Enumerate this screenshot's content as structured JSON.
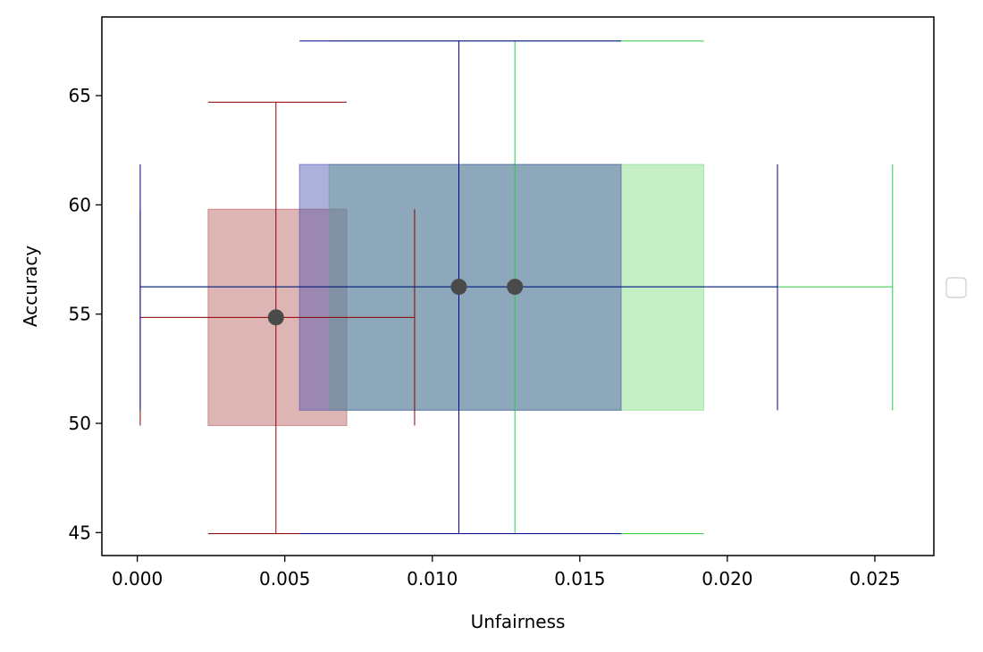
{
  "chart_data": {
    "type": "scatter",
    "title": "",
    "xlabel": "Unfairness",
    "ylabel": "Accuracy",
    "xlim": [
      -0.0012,
      0.027
    ],
    "ylim": [
      43.95,
      68.6
    ],
    "xticks": [
      0.0,
      0.005,
      0.01,
      0.015,
      0.02,
      0.025
    ],
    "xtick_labels": [
      "0.000",
      "0.005",
      "0.010",
      "0.015",
      "0.020",
      "0.025"
    ],
    "yticks": [
      45,
      50,
      55,
      60,
      65
    ],
    "ytick_labels": [
      "45",
      "50",
      "55",
      "60",
      "65"
    ],
    "grid": false,
    "legend": {
      "placement": "center-right",
      "entries": []
    },
    "series": [
      {
        "color": "#8b0000",
        "box_fill": "#b55a5a",
        "point": {
          "x": 0.0047,
          "y": 54.85
        },
        "box": {
          "x": [
            0.0024,
            0.0071
          ],
          "y": [
            49.9,
            59.8
          ]
        },
        "xerr_line": {
          "y": 54.85,
          "x": [
            0.0001,
            0.0094
          ]
        },
        "xerr_caps": [
          0.0001,
          0.0094
        ],
        "yerr_line": {
          "x": 0.0047,
          "y": [
            44.95,
            64.7
          ]
        },
        "yerr_caps_x": [
          0.0024,
          0.0071
        ],
        "vlines": [
          {
            "x": 0.0001,
            "y": [
              49.9,
              59.8
            ]
          },
          {
            "x": 0.0094,
            "y": [
              49.9,
              59.8
            ]
          }
        ],
        "hlines": [
          {
            "y": 44.95,
            "x": [
              0.0024,
              0.0071
            ]
          },
          {
            "y": 64.7,
            "x": [
              0.0024,
              0.0071
            ]
          }
        ]
      },
      {
        "color": "#2ecc40",
        "box_fill": "#7fdc7f",
        "point": {
          "x": 0.0128,
          "y": 56.25
        },
        "box": {
          "x": [
            0.0065,
            0.0192
          ],
          "y": [
            50.6,
            61.85
          ]
        },
        "xerr_line": {
          "y": 56.25,
          "x": [
            0.0001,
            0.0256
          ]
        },
        "yerr_line": {
          "x": 0.0128,
          "y": [
            44.95,
            67.5
          ]
        },
        "vlines": [
          {
            "x": 0.0256,
            "y": [
              50.6,
              61.85
            ]
          }
        ],
        "hlines": [
          {
            "y": 44.95,
            "x": [
              0.0065,
              0.0192
            ]
          },
          {
            "y": 67.5,
            "x": [
              0.0065,
              0.0192
            ]
          }
        ]
      },
      {
        "color": "#00008b",
        "box_fill": "#4a4fb0",
        "point": {
          "x": 0.0109,
          "y": 56.25
        },
        "box": {
          "x": [
            0.0055,
            0.0164
          ],
          "y": [
            50.6,
            61.85
          ]
        },
        "xerr_line": {
          "y": 56.25,
          "x": [
            0.0001,
            0.0217
          ]
        },
        "yerr_line": {
          "x": 0.0109,
          "y": [
            44.95,
            67.5
          ]
        },
        "vlines": [
          {
            "x": 0.0001,
            "y": [
              50.6,
              61.85
            ]
          },
          {
            "x": 0.0217,
            "y": [
              50.6,
              61.85
            ]
          }
        ],
        "hlines": [
          {
            "y": 44.95,
            "x": [
              0.0055,
              0.0164
            ]
          },
          {
            "y": 67.5,
            "x": [
              0.0055,
              0.0164
            ]
          }
        ]
      }
    ],
    "point_color": "#4a4a4a"
  }
}
